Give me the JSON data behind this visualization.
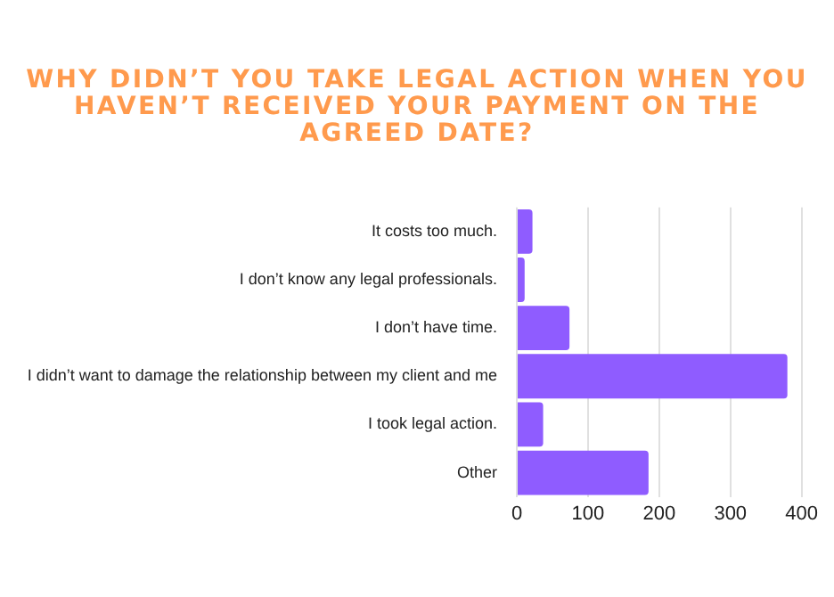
{
  "chart_data": {
    "type": "bar",
    "orientation": "horizontal",
    "title": "WHY DIDN’T YOU TAKE LEGAL ACTION WHEN YOU HAVEN’T RECEIVED YOUR PAYMENT ON THE AGREED DATE?",
    "categories": [
      "It costs too much.",
      "I don’t know any legal professionals.",
      "I don’t have time.",
      "I didn’t want to damage the relationship between my client and me",
      "I took legal action.",
      "Other"
    ],
    "values": [
      22,
      11,
      74,
      380,
      37,
      185
    ],
    "color": "#8f5cff",
    "xlim": [
      0,
      400
    ],
    "xticks": [
      0,
      100,
      200,
      300,
      400
    ],
    "grid": "x",
    "legend": false
  }
}
